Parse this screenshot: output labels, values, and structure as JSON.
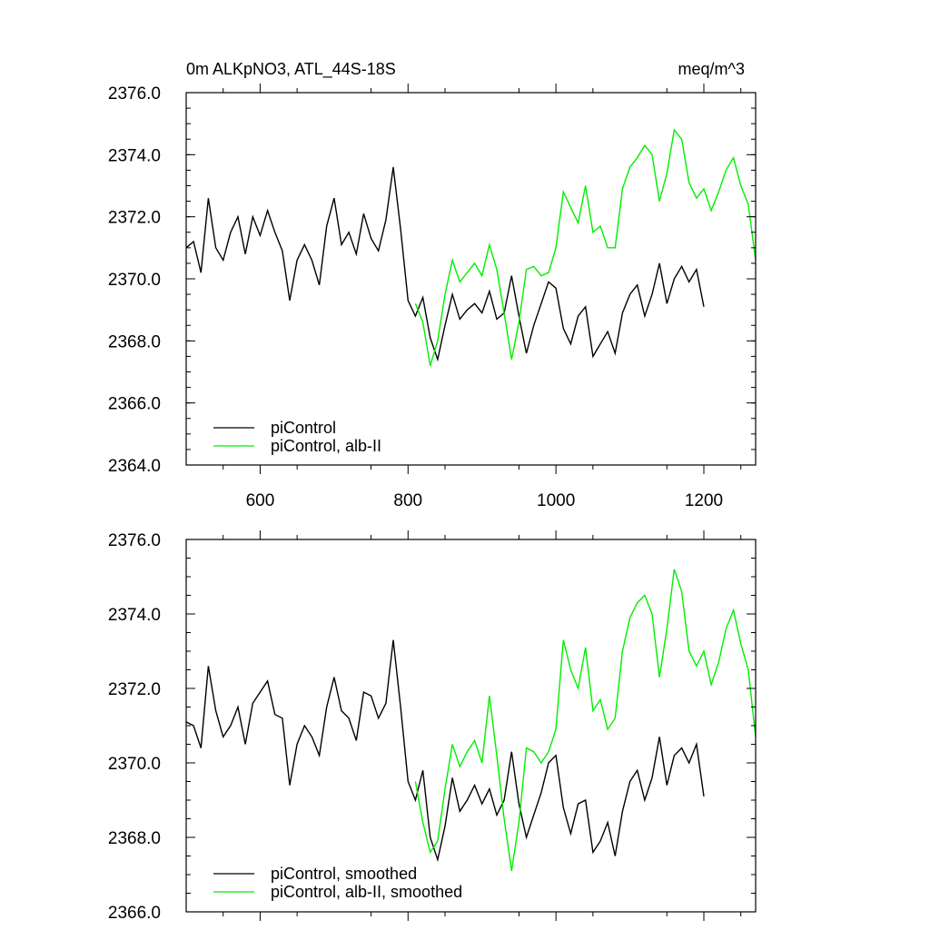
{
  "chart_data": [
    {
      "type": "line",
      "title_left": "0m ALKpNO3, ATL_44S-18S",
      "title_right": "meq/m^3",
      "xlim": [
        500,
        1270
      ],
      "ylim": [
        2364.0,
        2376.0
      ],
      "xticks": [
        600,
        800,
        1000,
        1200
      ],
      "yticks": [
        2364.0,
        2366.0,
        2368.0,
        2370.0,
        2372.0,
        2374.0,
        2376.0
      ],
      "ytick_labels": [
        "2364.0",
        "2366.0",
        "2368.0",
        "2370.0",
        "2372.0",
        "2374.0",
        "2376.0"
      ],
      "xtick_labels": [
        "600",
        "800",
        "1000",
        "1200"
      ],
      "legend_position": "bottom-left",
      "series": [
        {
          "name": "piControl",
          "color": "#000000",
          "x": [
            500,
            510,
            520,
            530,
            540,
            550,
            560,
            570,
            580,
            590,
            600,
            610,
            620,
            630,
            640,
            650,
            660,
            670,
            680,
            690,
            700,
            710,
            720,
            730,
            740,
            750,
            760,
            770,
            780,
            790,
            800,
            810,
            820,
            830,
            840,
            850,
            860,
            870,
            880,
            890,
            900,
            910,
            920,
            930,
            940,
            950,
            960,
            970,
            980,
            990,
            1000,
            1010,
            1020,
            1030,
            1040,
            1050,
            1060,
            1070,
            1080,
            1090,
            1100,
            1110,
            1120,
            1130,
            1140,
            1150,
            1160,
            1170,
            1180,
            1190,
            1200
          ],
          "y": [
            2371.0,
            2371.2,
            2370.2,
            2372.6,
            2371.0,
            2370.6,
            2371.5,
            2372.0,
            2370.8,
            2372.0,
            2371.4,
            2372.2,
            2371.5,
            2370.9,
            2369.3,
            2370.6,
            2371.1,
            2370.6,
            2369.8,
            2371.7,
            2372.6,
            2371.1,
            2371.5,
            2370.8,
            2372.1,
            2371.3,
            2370.9,
            2371.9,
            2373.6,
            2371.6,
            2369.3,
            2368.8,
            2369.4,
            2368.1,
            2367.4,
            2368.5,
            2369.5,
            2368.7,
            2369.0,
            2369.2,
            2368.9,
            2369.6,
            2368.7,
            2368.9,
            2370.1,
            2368.8,
            2367.6,
            2368.5,
            2369.2,
            2369.9,
            2369.7,
            2368.4,
            2367.9,
            2368.8,
            2369.1,
            2367.5,
            2367.9,
            2368.3,
            2367.6,
            2368.9,
            2369.5,
            2369.8,
            2368.8,
            2369.5,
            2370.5,
            2369.2,
            2370.0,
            2370.4,
            2369.9,
            2370.3,
            2369.1
          ]
        },
        {
          "name": "piControl, alb-II",
          "color": "#00ee00",
          "x": [
            810,
            820,
            830,
            840,
            850,
            860,
            870,
            880,
            890,
            900,
            910,
            920,
            930,
            940,
            950,
            960,
            970,
            980,
            990,
            1000,
            1010,
            1020,
            1030,
            1040,
            1050,
            1060,
            1070,
            1080,
            1090,
            1100,
            1110,
            1120,
            1130,
            1140,
            1150,
            1160,
            1170,
            1180,
            1190,
            1200,
            1210,
            1220,
            1230,
            1240,
            1250,
            1260,
            1270
          ],
          "y": [
            2369.2,
            2368.6,
            2367.2,
            2368.0,
            2369.5,
            2370.6,
            2369.9,
            2370.2,
            2370.5,
            2370.1,
            2371.1,
            2370.3,
            2368.9,
            2367.4,
            2368.6,
            2370.3,
            2370.4,
            2370.1,
            2370.2,
            2371.0,
            2372.8,
            2372.3,
            2371.8,
            2373.0,
            2371.5,
            2371.7,
            2371.0,
            2371.0,
            2372.9,
            2373.6,
            2373.9,
            2374.3,
            2374.0,
            2372.5,
            2373.4,
            2374.8,
            2374.5,
            2373.1,
            2372.6,
            2372.9,
            2372.2,
            2372.8,
            2373.5,
            2373.9,
            2373.0,
            2372.4,
            2370.6
          ]
        }
      ]
    },
    {
      "type": "line",
      "xlim": [
        500,
        1270
      ],
      "ylim": [
        2366.0,
        2376.0
      ],
      "xticks": [
        600,
        800,
        1000,
        1200
      ],
      "yticks": [
        2366.0,
        2368.0,
        2370.0,
        2372.0,
        2374.0,
        2376.0
      ],
      "ytick_labels": [
        "2366.0",
        "2368.0",
        "2370.0",
        "2372.0",
        "2374.0",
        "2376.0"
      ],
      "legend_position": "bottom-left",
      "series": [
        {
          "name": "piControl, smoothed",
          "color": "#000000",
          "x": [
            500,
            510,
            520,
            530,
            540,
            550,
            560,
            570,
            580,
            590,
            600,
            610,
            620,
            630,
            640,
            650,
            660,
            670,
            680,
            690,
            700,
            710,
            720,
            730,
            740,
            750,
            760,
            770,
            780,
            790,
            800,
            810,
            820,
            830,
            840,
            850,
            860,
            870,
            880,
            890,
            900,
            910,
            920,
            930,
            940,
            950,
            960,
            970,
            980,
            990,
            1000,
            1010,
            1020,
            1030,
            1040,
            1050,
            1060,
            1070,
            1080,
            1090,
            1100,
            1110,
            1120,
            1130,
            1140,
            1150,
            1160,
            1170,
            1180,
            1190,
            1200
          ],
          "y": [
            2371.1,
            2371.0,
            2370.4,
            2372.6,
            2371.4,
            2370.7,
            2371.0,
            2371.5,
            2370.5,
            2371.6,
            2371.9,
            2372.2,
            2371.3,
            2371.2,
            2369.4,
            2370.5,
            2371.0,
            2370.7,
            2370.2,
            2371.5,
            2372.3,
            2371.4,
            2371.2,
            2370.6,
            2371.9,
            2371.8,
            2371.2,
            2371.6,
            2373.3,
            2371.5,
            2369.5,
            2369.0,
            2369.8,
            2368.0,
            2367.4,
            2368.3,
            2369.6,
            2368.7,
            2369.0,
            2369.4,
            2368.9,
            2369.3,
            2368.6,
            2369.0,
            2370.3,
            2368.9,
            2368.0,
            2368.6,
            2369.2,
            2370.0,
            2370.2,
            2368.8,
            2368.1,
            2368.9,
            2369.0,
            2367.6,
            2367.9,
            2368.4,
            2367.5,
            2368.7,
            2369.5,
            2369.8,
            2369.0,
            2369.6,
            2370.7,
            2369.4,
            2370.2,
            2370.4,
            2370.0,
            2370.5,
            2369.1
          ]
        },
        {
          "name": "piControl, alb-II, smoothed",
          "color": "#00ee00",
          "x": [
            810,
            820,
            830,
            840,
            850,
            860,
            870,
            880,
            890,
            900,
            910,
            920,
            930,
            940,
            950,
            960,
            970,
            980,
            990,
            1000,
            1010,
            1020,
            1030,
            1040,
            1050,
            1060,
            1070,
            1080,
            1090,
            1100,
            1110,
            1120,
            1130,
            1140,
            1150,
            1160,
            1170,
            1180,
            1190,
            1200,
            1210,
            1220,
            1230,
            1240,
            1250,
            1260,
            1270
          ],
          "y": [
            2369.5,
            2368.4,
            2367.6,
            2367.9,
            2369.3,
            2370.5,
            2369.9,
            2370.3,
            2370.6,
            2370.0,
            2371.8,
            2370.2,
            2368.5,
            2367.1,
            2368.4,
            2370.4,
            2370.3,
            2370.0,
            2370.3,
            2370.9,
            2373.3,
            2372.5,
            2372.0,
            2373.1,
            2371.4,
            2371.7,
            2370.9,
            2371.2,
            2373.0,
            2373.9,
            2374.3,
            2374.5,
            2374.0,
            2372.3,
            2373.6,
            2375.2,
            2374.6,
            2373.0,
            2372.6,
            2373.0,
            2372.1,
            2372.7,
            2373.6,
            2374.1,
            2373.2,
            2372.5,
            2370.7
          ]
        }
      ]
    }
  ]
}
